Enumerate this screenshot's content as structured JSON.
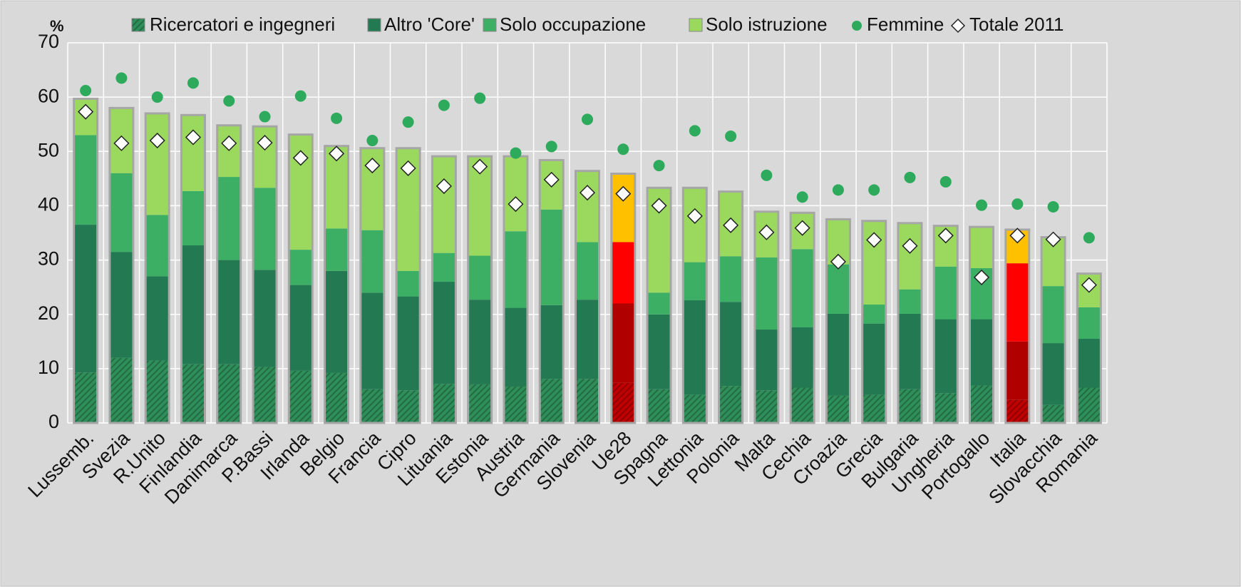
{
  "chart_data": {
    "type": "stacked_bar",
    "y_unit_label": "%",
    "categories": [
      "Lussemb.",
      "Svezia",
      "R.Unito",
      "Finlandia",
      "Danimarca",
      "P.Bassi",
      "Irlanda",
      "Belgio",
      "Francia",
      "Cipro",
      "Lituania",
      "Estonia",
      "Austria",
      "Germania",
      "Slovenia",
      "Ue28",
      "Spagna",
      "Lettonia",
      "Polonia",
      "Malta",
      "Cechia",
      "Croazia",
      "Grecia",
      "Bulgaria",
      "Ungheria",
      "Portogallo",
      "Italia",
      "Slovacchia",
      "Romania"
    ],
    "highlight_categories": [
      "Ue28",
      "Italia"
    ],
    "series": [
      {
        "name": "Ricercatori e ingegneri",
        "color": "#2f8f5a",
        "highlight_color": "#c00000",
        "hatch": true,
        "values": [
          9.3,
          12,
          11.5,
          10.8,
          10.8,
          10.3,
          9.6,
          9.2,
          6.2,
          6,
          7.2,
          7.1,
          6.7,
          8.1,
          8.1,
          7.4,
          6.2,
          5.2,
          6.8,
          6,
          6.5,
          5,
          5.2,
          6.2,
          5.5,
          6.9,
          4.3,
          3.3,
          6.5
        ]
      },
      {
        "name": "Altro 'Core'",
        "color": "#237a52",
        "highlight_color": "#b00000",
        "values": [
          27.2,
          19.5,
          15.5,
          21.9,
          19.2,
          17.9,
          15.8,
          18.8,
          17.8,
          17.3,
          18.8,
          15.6,
          14.5,
          13.6,
          14.6,
          14.6,
          13.8,
          17.4,
          15.5,
          11.2,
          11.1,
          15.1,
          13.1,
          13.9,
          13.6,
          12.2,
          10.7,
          11.4,
          9
        ]
      },
      {
        "name": "Solo occupazione",
        "color": "#3caf64",
        "highlight_color": "#ff0000",
        "values": [
          16.5,
          14.5,
          11.3,
          10,
          15.3,
          15.1,
          6.5,
          7.8,
          11.5,
          4.7,
          5.3,
          8.1,
          14.1,
          17.6,
          10.6,
          11.3,
          4,
          7,
          8.4,
          13.3,
          14.4,
          9.1,
          3.5,
          4.5,
          9.7,
          9.4,
          14.4,
          10.5,
          5.8
        ]
      },
      {
        "name": "Solo istruzione",
        "color": "#9ad95e",
        "highlight_color": "#ffc000",
        "values": [
          6.7,
          12,
          18.7,
          14,
          9.5,
          11.3,
          21.2,
          15.2,
          15.1,
          22.6,
          17.8,
          18.3,
          13.8,
          9.1,
          13.1,
          12.6,
          19.3,
          13.7,
          11.9,
          8.4,
          6.7,
          8.3,
          15.4,
          12.2,
          7.5,
          7.6,
          6.2,
          9,
          6.2
        ]
      }
    ],
    "points": [
      {
        "name": "Femmine",
        "color": "#2eaa5c",
        "marker": "circle",
        "values": [
          61.2,
          63.5,
          60,
          62.6,
          59.3,
          56.4,
          60.2,
          56.1,
          52,
          55.4,
          58.5,
          59.8,
          49.7,
          50.9,
          55.9,
          50.4,
          47.4,
          53.8,
          52.8,
          45.6,
          41.6,
          42.9,
          42.9,
          45.2,
          44.4,
          40.1,
          40.3,
          39.8,
          34.1
        ]
      },
      {
        "name": "Totale 2011",
        "color": "#ffffff",
        "marker": "diamond",
        "values": [
          57.3,
          51.5,
          52,
          52.6,
          51.5,
          51.6,
          48.8,
          49.6,
          47.4,
          46.9,
          43.6,
          47.2,
          40.3,
          44.8,
          42.4,
          42.2,
          40,
          38.1,
          36.4,
          35.1,
          35.9,
          29.7,
          33.7,
          32.6,
          34.5,
          26.8,
          34.5,
          33.8,
          25.4
        ]
      }
    ],
    "ylim": [
      0,
      70
    ],
    "yticks": [
      0,
      10,
      20,
      30,
      40,
      50,
      60,
      70
    ],
    "grid": true
  }
}
